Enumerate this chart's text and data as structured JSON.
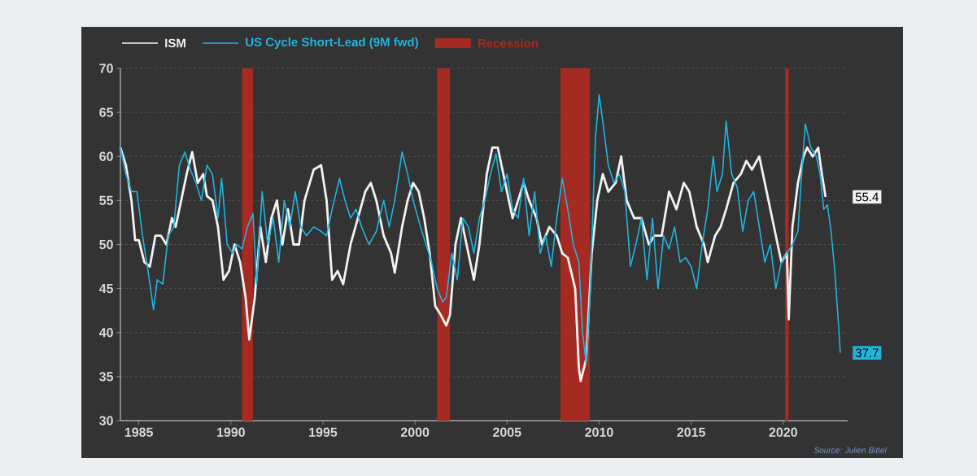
{
  "chart_data": {
    "type": "line",
    "xlim": [
      1984,
      2023.5
    ],
    "xticks": [
      1985,
      1990,
      1995,
      2000,
      2005,
      2010,
      2015,
      2020
    ],
    "ylim": [
      30,
      70
    ],
    "yticks": [
      30,
      35,
      40,
      45,
      50,
      55,
      60,
      65,
      70
    ],
    "grid": "y",
    "legend": "top left",
    "series": [
      {
        "name": "ISM",
        "color": "#f2f2f2",
        "x": [
          1984.0,
          1984.3,
          1984.6,
          1984.8,
          1985.0,
          1985.3,
          1985.6,
          1985.9,
          1986.2,
          1986.5,
          1986.8,
          1987.0,
          1987.3,
          1987.6,
          1987.9,
          1988.2,
          1988.5,
          1988.7,
          1989.0,
          1989.3,
          1989.6,
          1989.9,
          1990.2,
          1990.5,
          1990.8,
          1991.0,
          1991.3,
          1991.6,
          1991.9,
          1992.2,
          1992.5,
          1992.8,
          1993.1,
          1993.4,
          1993.7,
          1994.0,
          1994.5,
          1994.9,
          1995.2,
          1995.5,
          1995.8,
          1996.1,
          1996.5,
          1996.9,
          1997.3,
          1997.6,
          1997.9,
          1998.3,
          1998.7,
          1998.9,
          1999.3,
          1999.6,
          1999.9,
          2000.2,
          2000.5,
          2000.8,
          2001.1,
          2001.4,
          2001.7,
          2001.9,
          2002.2,
          2002.5,
          2002.9,
          2003.2,
          2003.5,
          2003.9,
          2004.2,
          2004.5,
          2004.9,
          2005.3,
          2005.6,
          2005.9,
          2006.2,
          2006.6,
          2006.9,
          2007.3,
          2007.7,
          2008.0,
          2008.3,
          2008.7,
          2008.9,
          2009.0,
          2009.3,
          2009.6,
          2009.9,
          2010.2,
          2010.5,
          2010.9,
          2011.2,
          2011.5,
          2011.9,
          2012.3,
          2012.7,
          2013.0,
          2013.4,
          2013.8,
          2014.2,
          2014.6,
          2014.9,
          2015.3,
          2015.7,
          2015.9,
          2016.3,
          2016.6,
          2016.9,
          2017.3,
          2017.7,
          2018.0,
          2018.3,
          2018.7,
          2018.9,
          2019.2,
          2019.6,
          2019.9,
          2020.2,
          2020.3,
          2020.5,
          2020.8,
          2021.1,
          2021.3,
          2021.6,
          2021.9,
          2022.1,
          2022.3
        ],
        "values": [
          61,
          59,
          55,
          50.5,
          50.5,
          48,
          47.5,
          51,
          51,
          50,
          53,
          52,
          55,
          58,
          60.5,
          57,
          58,
          55.5,
          55,
          52,
          46,
          47,
          50,
          48,
          44,
          39.2,
          44,
          52,
          48,
          53,
          55,
          50,
          54,
          50,
          50,
          55,
          58.5,
          59,
          55,
          46,
          47,
          45.5,
          50,
          53,
          56,
          57,
          55,
          51,
          49,
          46.8,
          52,
          55,
          57,
          56,
          53,
          49,
          43,
          42,
          40.8,
          42,
          50,
          53,
          49,
          46,
          50,
          58,
          61,
          61,
          57,
          53,
          55,
          57,
          55,
          53,
          50,
          52,
          51,
          49,
          48.5,
          45,
          36,
          34.5,
          37,
          49,
          55,
          58,
          56,
          57,
          60,
          55,
          53,
          53,
          50,
          51,
          51,
          56,
          54,
          57,
          56,
          52,
          50,
          48,
          51,
          52,
          54,
          57,
          58,
          59.5,
          58.5,
          60,
          58,
          55,
          51,
          48,
          49,
          41.5,
          52,
          57,
          60,
          61,
          60,
          61,
          58,
          55.4
        ]
      },
      {
        "name": "US Cycle Short-Lead (9M fwd)",
        "color": "#1fb4e0",
        "x": [
          1984.0,
          1984.3,
          1984.6,
          1984.9,
          1985.2,
          1985.5,
          1985.8,
          1986.0,
          1986.3,
          1986.6,
          1986.9,
          1987.2,
          1987.5,
          1987.8,
          1988.1,
          1988.4,
          1988.7,
          1989.0,
          1989.3,
          1989.5,
          1989.8,
          1990.1,
          1990.3,
          1990.6,
          1990.9,
          1991.2,
          1991.4,
          1991.7,
          1992.0,
          1992.3,
          1992.6,
          1992.9,
          1993.2,
          1993.5,
          1993.8,
          1994.1,
          1994.5,
          1994.9,
          1995.2,
          1995.5,
          1995.9,
          1996.2,
          1996.5,
          1996.8,
          1997.1,
          1997.5,
          1997.9,
          1998.3,
          1998.6,
          1998.9,
          1999.3,
          1999.6,
          1999.9,
          2000.3,
          2000.6,
          2000.9,
          2001.2,
          2001.5,
          2001.7,
          2002.0,
          2002.3,
          2002.6,
          2002.9,
          2003.2,
          2003.5,
          2003.8,
          2004.1,
          2004.4,
          2004.7,
          2005.0,
          2005.3,
          2005.6,
          2005.9,
          2006.2,
          2006.5,
          2006.8,
          2007.1,
          2007.4,
          2007.7,
          2008.0,
          2008.3,
          2008.6,
          2008.9,
          2009.1,
          2009.3,
          2009.5,
          2009.8,
          2010.0,
          2010.2,
          2010.5,
          2010.8,
          2011.1,
          2011.4,
          2011.7,
          2012.0,
          2012.3,
          2012.6,
          2012.9,
          2013.2,
          2013.5,
          2013.8,
          2014.1,
          2014.4,
          2014.7,
          2015.0,
          2015.3,
          2015.6,
          2015.9,
          2016.2,
          2016.4,
          2016.7,
          2016.9,
          2017.2,
          2017.5,
          2017.8,
          2018.1,
          2018.4,
          2018.7,
          2019.0,
          2019.3,
          2019.6,
          2019.9,
          2020.2,
          2020.5,
          2020.8,
          2021.0,
          2021.2,
          2021.5,
          2021.8,
          2022.0,
          2022.2,
          2022.4,
          2022.6,
          2022.8,
          2023.0,
          2023.1
        ],
        "values": [
          61,
          58,
          56,
          56,
          51,
          47,
          42.6,
          46,
          45.5,
          51,
          52,
          59,
          60.5,
          58.5,
          57,
          55,
          59,
          58,
          53,
          57.5,
          50,
          49,
          50,
          49.5,
          52,
          53.5,
          45.5,
          56,
          50,
          53,
          48,
          55,
          52,
          56,
          52,
          51,
          52,
          51.5,
          51,
          54,
          57.5,
          55,
          53,
          54,
          52,
          50,
          51.5,
          55,
          52,
          55,
          60.5,
          58,
          55,
          52,
          50,
          48,
          45,
          43.5,
          44,
          49,
          46,
          53,
          52,
          49,
          53,
          55,
          58,
          60.3,
          56,
          58,
          54,
          53,
          57.5,
          51,
          56,
          49,
          51,
          47.5,
          53,
          57.5,
          54,
          50,
          48,
          40,
          36.5,
          44,
          62,
          67,
          64,
          59,
          57,
          58,
          56,
          47.5,
          50,
          53,
          46,
          53,
          45,
          51,
          49.5,
          52,
          48,
          48.5,
          47.5,
          45,
          50,
          54,
          60,
          56,
          58,
          64,
          58,
          56.5,
          51.5,
          55,
          56,
          52,
          48,
          50,
          45,
          48,
          49,
          50,
          51.5,
          58,
          63.7,
          61,
          60,
          58,
          54,
          54.5,
          51.5,
          47,
          41,
          37.7
        ]
      }
    ],
    "bands": [
      {
        "axis": "x",
        "from": 1990.6,
        "to": 1991.2,
        "label": "Recession",
        "color": "#a52a22"
      },
      {
        "axis": "x",
        "from": 2001.2,
        "to": 2001.9,
        "color": "#a52a22"
      },
      {
        "axis": "x",
        "from": 2007.9,
        "to": 2009.5,
        "color": "#a52a22"
      },
      {
        "axis": "x",
        "from": 2020.1,
        "to": 2020.3,
        "color": "#a52a22"
      }
    ],
    "annotations": [
      {
        "text": "55.4",
        "x": 2022.3,
        "y": 55.4
      },
      {
        "text": "37.7",
        "x": 2023.1,
        "y": 37.7
      },
      "Source: Julien Bittel"
    ]
  }
}
